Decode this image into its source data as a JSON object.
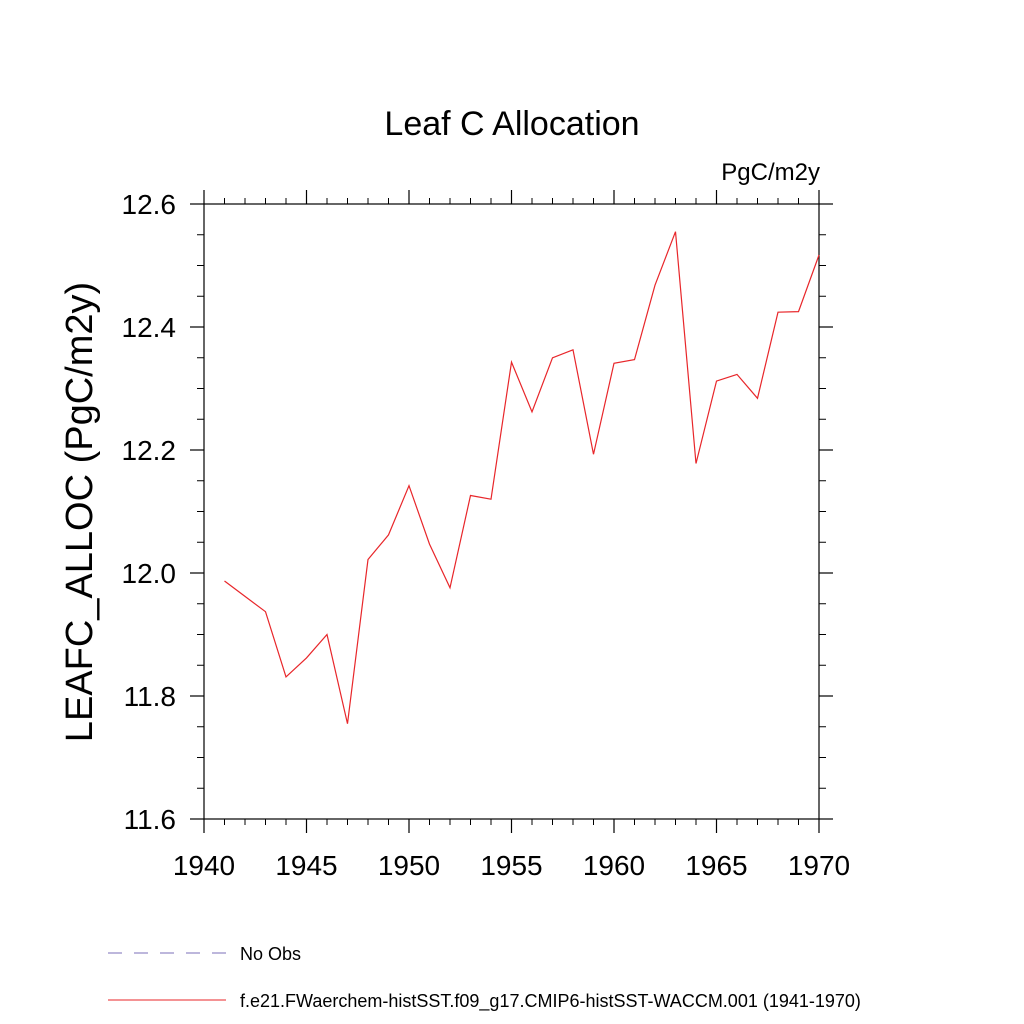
{
  "chart_data": {
    "type": "line",
    "title": "Leaf C Allocation",
    "units_label": "PgC/m2y",
    "xlabel": "",
    "ylabel": "LEAFC_ALLOC  (PgC/m2y)",
    "xlim": [
      1940,
      1970
    ],
    "ylim": [
      11.6,
      12.6
    ],
    "x_ticks": [
      1940,
      1945,
      1950,
      1955,
      1960,
      1965,
      1970
    ],
    "x_tick_labels": [
      "1940",
      "1945",
      "1950",
      "1955",
      "1960",
      "1965",
      "1970"
    ],
    "y_ticks": [
      11.6,
      11.8,
      12.0,
      12.2,
      12.4,
      12.6
    ],
    "y_tick_labels": [
      "11.6",
      "11.8",
      "12.0",
      "12.2",
      "12.4",
      "12.6"
    ],
    "grid": false,
    "legend_position": "bottom",
    "series": [
      {
        "name": "No Obs",
        "color": "#7b6fb8",
        "dash": "dashed",
        "x": [],
        "y": []
      },
      {
        "name": "f.e21.FWaerchem-histSST.f09_g17.CMIP6-histSST-WACCM.001 (1941-1970)",
        "color": "#e8262a",
        "dash": "solid",
        "x": [
          1941,
          1942,
          1943,
          1944,
          1945,
          1946,
          1947,
          1948,
          1949,
          1950,
          1951,
          1952,
          1953,
          1954,
          1955,
          1956,
          1957,
          1958,
          1959,
          1960,
          1961,
          1962,
          1963,
          1964,
          1965,
          1966,
          1967,
          1968,
          1969,
          1970
        ],
        "y": [
          11.987,
          11.962,
          11.937,
          11.831,
          11.862,
          11.9,
          11.755,
          12.022,
          12.062,
          12.142,
          12.047,
          11.976,
          12.126,
          12.12,
          12.343,
          12.262,
          12.35,
          12.363,
          12.193,
          12.341,
          12.347,
          12.468,
          12.555,
          12.178,
          12.312,
          12.323,
          12.284,
          12.424,
          12.425,
          12.517
        ]
      }
    ]
  }
}
